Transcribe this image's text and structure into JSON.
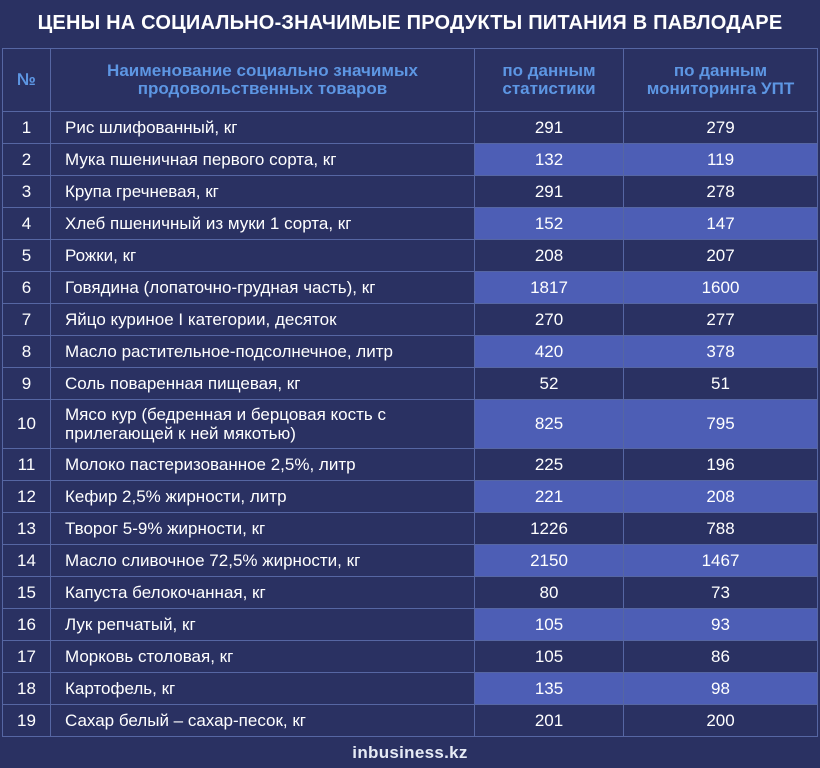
{
  "title": "ЦЕНЫ НА СОЦИАЛЬНО-ЗНАЧИМЫЕ ПРОДУКТЫ ПИТАНИЯ В ПАВЛОДАРЕ",
  "headers": {
    "num": "№",
    "name": "Наименование социально значимых продовольственных товаров",
    "stat": "по данным статистики",
    "monitor": "по данным мониторинга УПТ"
  },
  "rows": [
    {
      "num": "1",
      "name": "Рис шлифованный, кг",
      "stat": "291",
      "monitor": "279"
    },
    {
      "num": "2",
      "name": "Мука пшеничная первого сорта, кг",
      "stat": "132",
      "monitor": "119"
    },
    {
      "num": "3",
      "name": "Крупа гречневая, кг",
      "stat": "291",
      "monitor": "278"
    },
    {
      "num": "4",
      "name": "Хлеб пшеничный из муки 1 сорта, кг",
      "stat": "152",
      "monitor": "147"
    },
    {
      "num": "5",
      "name": "Рожки, кг",
      "stat": "208",
      "monitor": "207"
    },
    {
      "num": "6",
      "name": "Говядина (лопаточно-грудная часть), кг",
      "stat": "1817",
      "monitor": "1600"
    },
    {
      "num": "7",
      "name": "Яйцо куриное I категории, десяток",
      "stat": "270",
      "monitor": "277"
    },
    {
      "num": "8",
      "name": "Масло растительное-подсолнечное, литр",
      "stat": "420",
      "monitor": "378"
    },
    {
      "num": "9",
      "name": "Соль поваренная пищевая, кг",
      "stat": "52",
      "monitor": "51"
    },
    {
      "num": "10",
      "name": "Мясо кур (бедренная и берцовая кость с прилегающей к ней мякотью)",
      "stat": "825",
      "monitor": "795"
    },
    {
      "num": "11",
      "name": "Молоко пастеризованное 2,5%, литр",
      "stat": "225",
      "monitor": "196"
    },
    {
      "num": "12",
      "name": "Кефир 2,5% жирности, литр",
      "stat": "221",
      "monitor": "208"
    },
    {
      "num": "13",
      "name": "Творог 5-9% жирности, кг",
      "stat": "1226",
      "monitor": "788"
    },
    {
      "num": "14",
      "name": "Масло сливочное 72,5% жирности, кг",
      "stat": "2150",
      "monitor": "1467"
    },
    {
      "num": "15",
      "name": "Капуста белокочанная, кг",
      "stat": "80",
      "monitor": "73"
    },
    {
      "num": "16",
      "name": "Лук репчатый, кг",
      "stat": "105",
      "monitor": "93"
    },
    {
      "num": "17",
      "name": "Морковь столовая, кг",
      "stat": "105",
      "monitor": "86"
    },
    {
      "num": "18",
      "name": "Картофель, кг",
      "stat": "135",
      "monitor": "98"
    },
    {
      "num": "19",
      "name": "Сахар белый – сахар-песок, кг",
      "stat": "201",
      "monitor": "200"
    }
  ],
  "footer": "inbusiness.kz",
  "colors": {
    "background": "#2a3162",
    "highlight": "#4d5eb5",
    "header_text": "#5d96e3",
    "grid": "#5666a3"
  }
}
